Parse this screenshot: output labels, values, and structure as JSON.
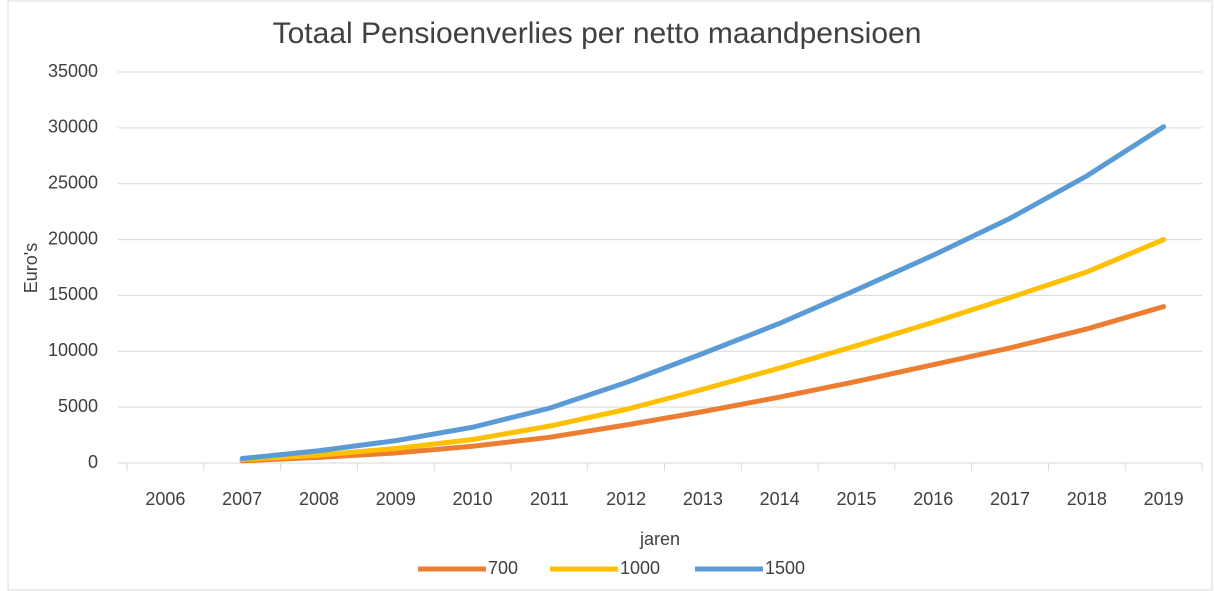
{
  "chart_data": {
    "type": "line",
    "title": "Totaal Pensioenverlies per netto maandpensioen",
    "x_label": "jaren",
    "y_label": "Euro's",
    "categories": [
      "2006",
      "2007",
      "2008",
      "2009",
      "2010",
      "2011",
      "2012",
      "2013",
      "2014",
      "2015",
      "2016",
      "2017",
      "2018",
      "2019"
    ],
    "series": [
      {
        "name": "700",
        "color": "#ed7d31",
        "values": [
          null,
          200,
          500,
          900,
          1500,
          2300,
          3400,
          4600,
          5900,
          7300,
          8800,
          10300,
          12000,
          14000
        ]
      },
      {
        "name": "1000",
        "color": "#ffc000",
        "values": [
          null,
          300,
          700,
          1300,
          2100,
          3300,
          4800,
          6600,
          8500,
          10500,
          12600,
          14800,
          17100,
          20000
        ]
      },
      {
        "name": "1500",
        "color": "#5b9bd5",
        "values": [
          null,
          400,
          1100,
          2000,
          3200,
          4900,
          7200,
          9800,
          12500,
          15500,
          18600,
          21900,
          25700,
          30100
        ]
      }
    ],
    "ylim": [
      0,
      35000
    ],
    "yticks": [
      0,
      5000,
      10000,
      15000,
      20000,
      25000,
      30000,
      35000
    ],
    "grid": true,
    "legend": "bottom"
  }
}
